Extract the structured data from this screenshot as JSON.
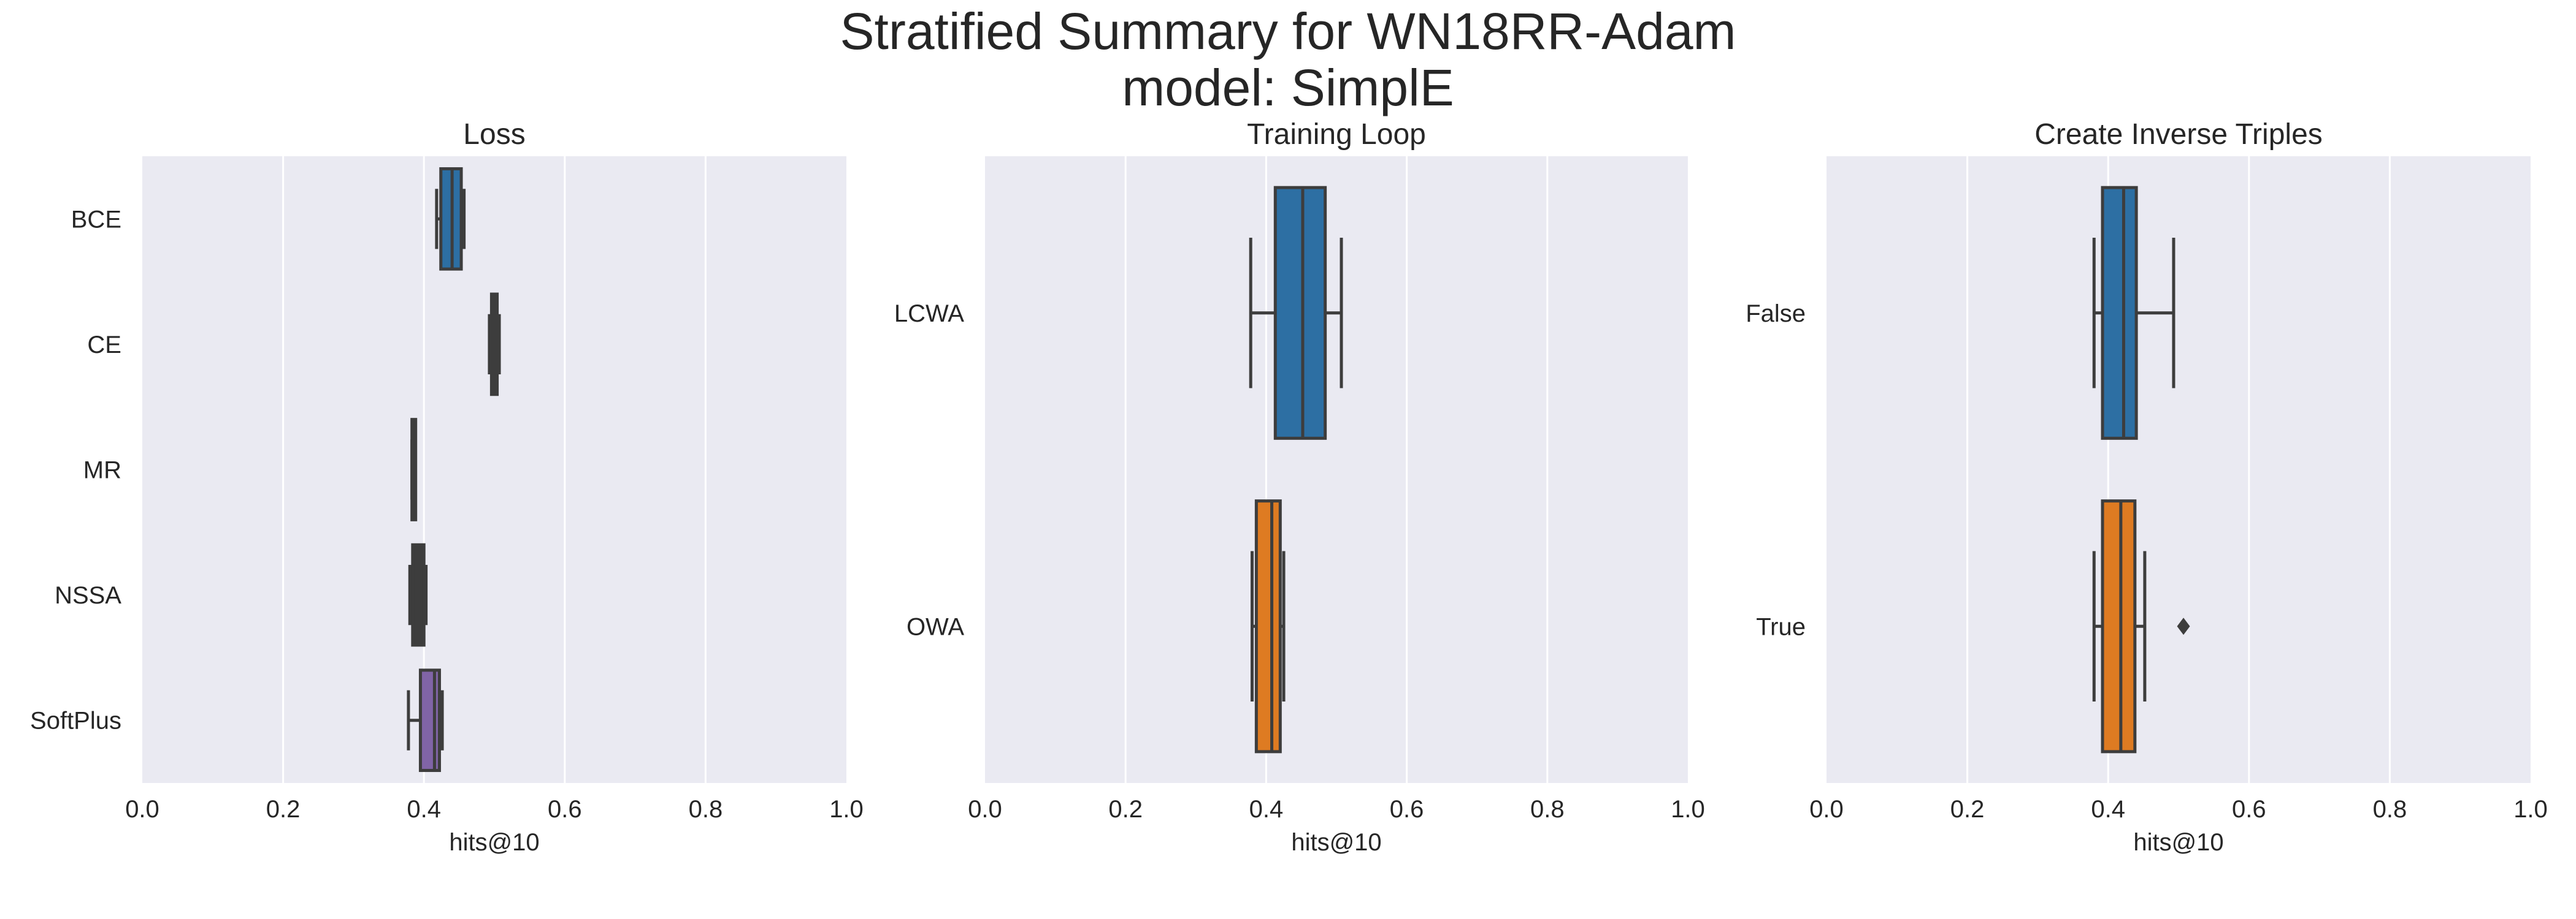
{
  "figure": {
    "title_line1": "Stratified Summary for WN18RR-Adam",
    "title_line2": "model: SimplE"
  },
  "colors": {
    "axes_bg": "#eaeaf2",
    "grid": "#ffffff",
    "edge": "#3d3d3d",
    "blue": "#2d6fa3",
    "orange": "#de7b22",
    "dark": "#3d3d3d",
    "purple": "#8064a6"
  },
  "chart_data": [
    {
      "type": "box",
      "title": "Loss",
      "xlabel": "hits@10",
      "xlim": [
        0,
        1
      ],
      "xticks": [
        "0.0",
        "0.2",
        "0.4",
        "0.6",
        "0.8",
        "1.0"
      ],
      "grid": true,
      "categories": [
        "BCE",
        "CE",
        "MR",
        "NSSA",
        "SoftPlus"
      ],
      "boxes": [
        {
          "category": "BCE",
          "whislo": 0.418,
          "q1": 0.424,
          "med": 0.44,
          "q3": 0.453,
          "whishi": 0.457,
          "fliers": [],
          "color": "blue"
        },
        {
          "category": "CE",
          "whislo": 0.493,
          "q1": 0.496,
          "med": 0.5,
          "q3": 0.504,
          "whishi": 0.507,
          "fliers": [],
          "color": "dark"
        },
        {
          "category": "MR",
          "whislo": 0.383,
          "q1": 0.383,
          "med": 0.384,
          "q3": 0.384,
          "whishi": 0.385,
          "fliers": [],
          "color": "dark"
        },
        {
          "category": "NSSA",
          "whislo": 0.38,
          "q1": 0.384,
          "med": 0.392,
          "q3": 0.4,
          "whishi": 0.403,
          "fliers": [],
          "color": "dark"
        },
        {
          "category": "SoftPlus",
          "whislo": 0.378,
          "q1": 0.395,
          "med": 0.415,
          "q3": 0.422,
          "whishi": 0.426,
          "fliers": [],
          "color": "purple"
        }
      ]
    },
    {
      "type": "box",
      "title": "Training Loop",
      "xlabel": "hits@10",
      "xlim": [
        0,
        1
      ],
      "xticks": [
        "0.0",
        "0.2",
        "0.4",
        "0.6",
        "0.8",
        "1.0"
      ],
      "grid": true,
      "categories": [
        "LCWA",
        "OWA"
      ],
      "boxes": [
        {
          "category": "LCWA",
          "whislo": 0.378,
          "q1": 0.413,
          "med": 0.452,
          "q3": 0.484,
          "whishi": 0.507,
          "fliers": [],
          "color": "blue"
        },
        {
          "category": "OWA",
          "whislo": 0.38,
          "q1": 0.386,
          "med": 0.408,
          "q3": 0.42,
          "whishi": 0.425,
          "fliers": [],
          "color": "orange"
        }
      ]
    },
    {
      "type": "box",
      "title": "Create Inverse Triples",
      "xlabel": "hits@10",
      "xlim": [
        0,
        1
      ],
      "xticks": [
        "0.0",
        "0.2",
        "0.4",
        "0.6",
        "0.8",
        "1.0"
      ],
      "grid": true,
      "categories": [
        "False",
        "True"
      ],
      "boxes": [
        {
          "category": "False",
          "whislo": 0.38,
          "q1": 0.392,
          "med": 0.422,
          "q3": 0.44,
          "whishi": 0.493,
          "fliers": [],
          "color": "blue"
        },
        {
          "category": "True",
          "whislo": 0.38,
          "q1": 0.392,
          "med": 0.418,
          "q3": 0.438,
          "whishi": 0.452,
          "fliers": [
            0.507
          ],
          "color": "orange"
        }
      ]
    }
  ]
}
